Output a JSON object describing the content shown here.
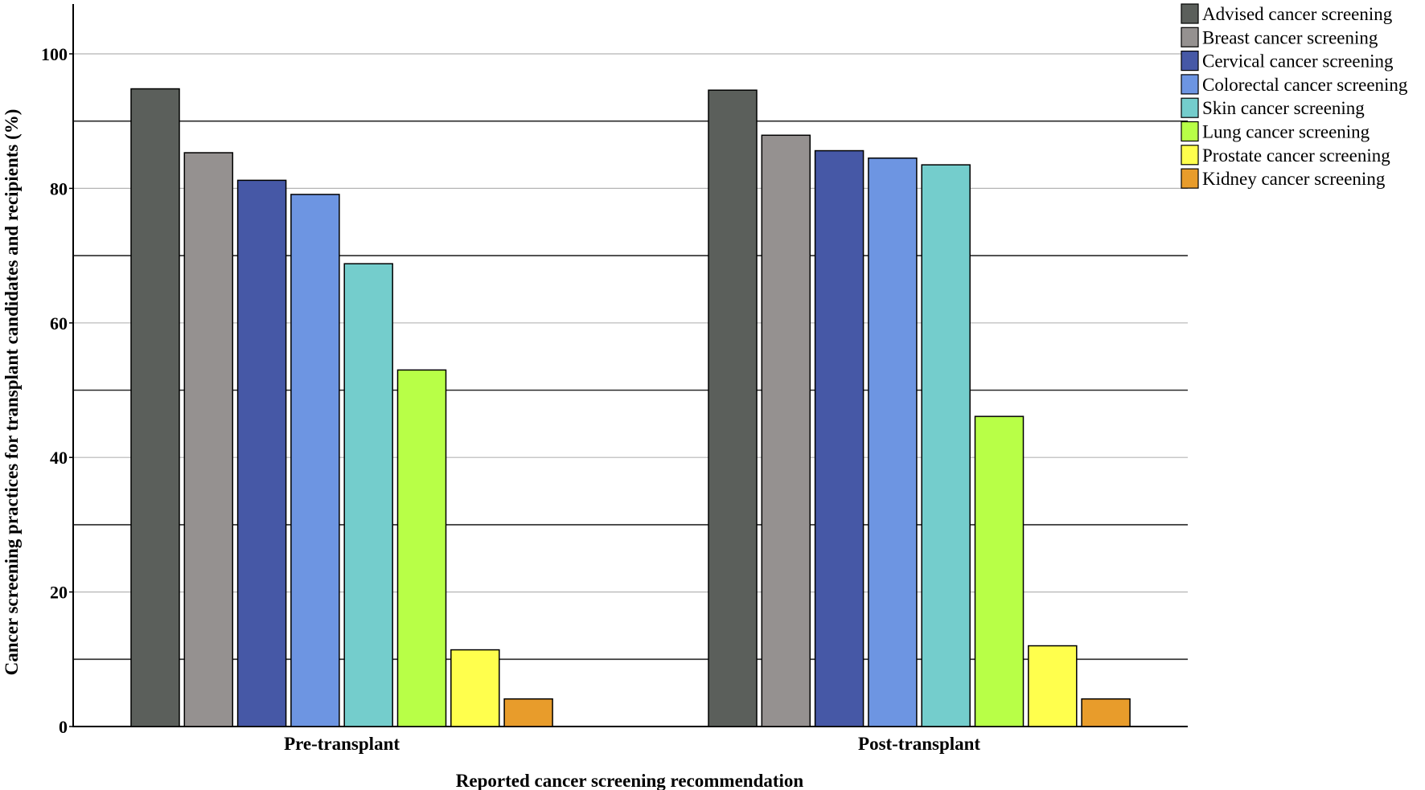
{
  "chart_data": {
    "type": "bar",
    "title": "",
    "xlabel": "Reported cancer screening recommendation",
    "ylabel": "Cancer screening practices for transplant candidates and recipients (%)",
    "ylim": [
      0,
      105
    ],
    "yticks": [
      "0",
      "20",
      "40",
      "60",
      "80",
      "100"
    ],
    "grid": true,
    "legend_position": "top-right",
    "categories": [
      "Pre-transplant",
      "Post-transplant"
    ],
    "series": [
      {
        "name": "Advised cancer screening",
        "color": "#5b5f5b",
        "values": [
          94.8,
          94.6
        ]
      },
      {
        "name": "Breast cancer screening",
        "color": "#959190",
        "values": [
          85.3,
          87.9
        ]
      },
      {
        "name": "Cervical cancer screening",
        "color": "#4658a6",
        "values": [
          81.2,
          85.6
        ]
      },
      {
        "name": "Colorectal cancer screening",
        "color": "#6d95e2",
        "values": [
          79.1,
          84.5
        ]
      },
      {
        "name": "Skin cancer screening",
        "color": "#74cdcc",
        "values": [
          68.8,
          83.5
        ]
      },
      {
        "name": "Lung cancer screening",
        "color": "#b8ff47",
        "values": [
          53.0,
          46.1
        ]
      },
      {
        "name": "Prostate cancer screening",
        "color": "#ffff4d",
        "values": [
          11.4,
          12.0
        ]
      },
      {
        "name": "Kidney cancer screening",
        "color": "#e89c2b",
        "values": [
          4.1,
          4.1
        ]
      }
    ]
  }
}
